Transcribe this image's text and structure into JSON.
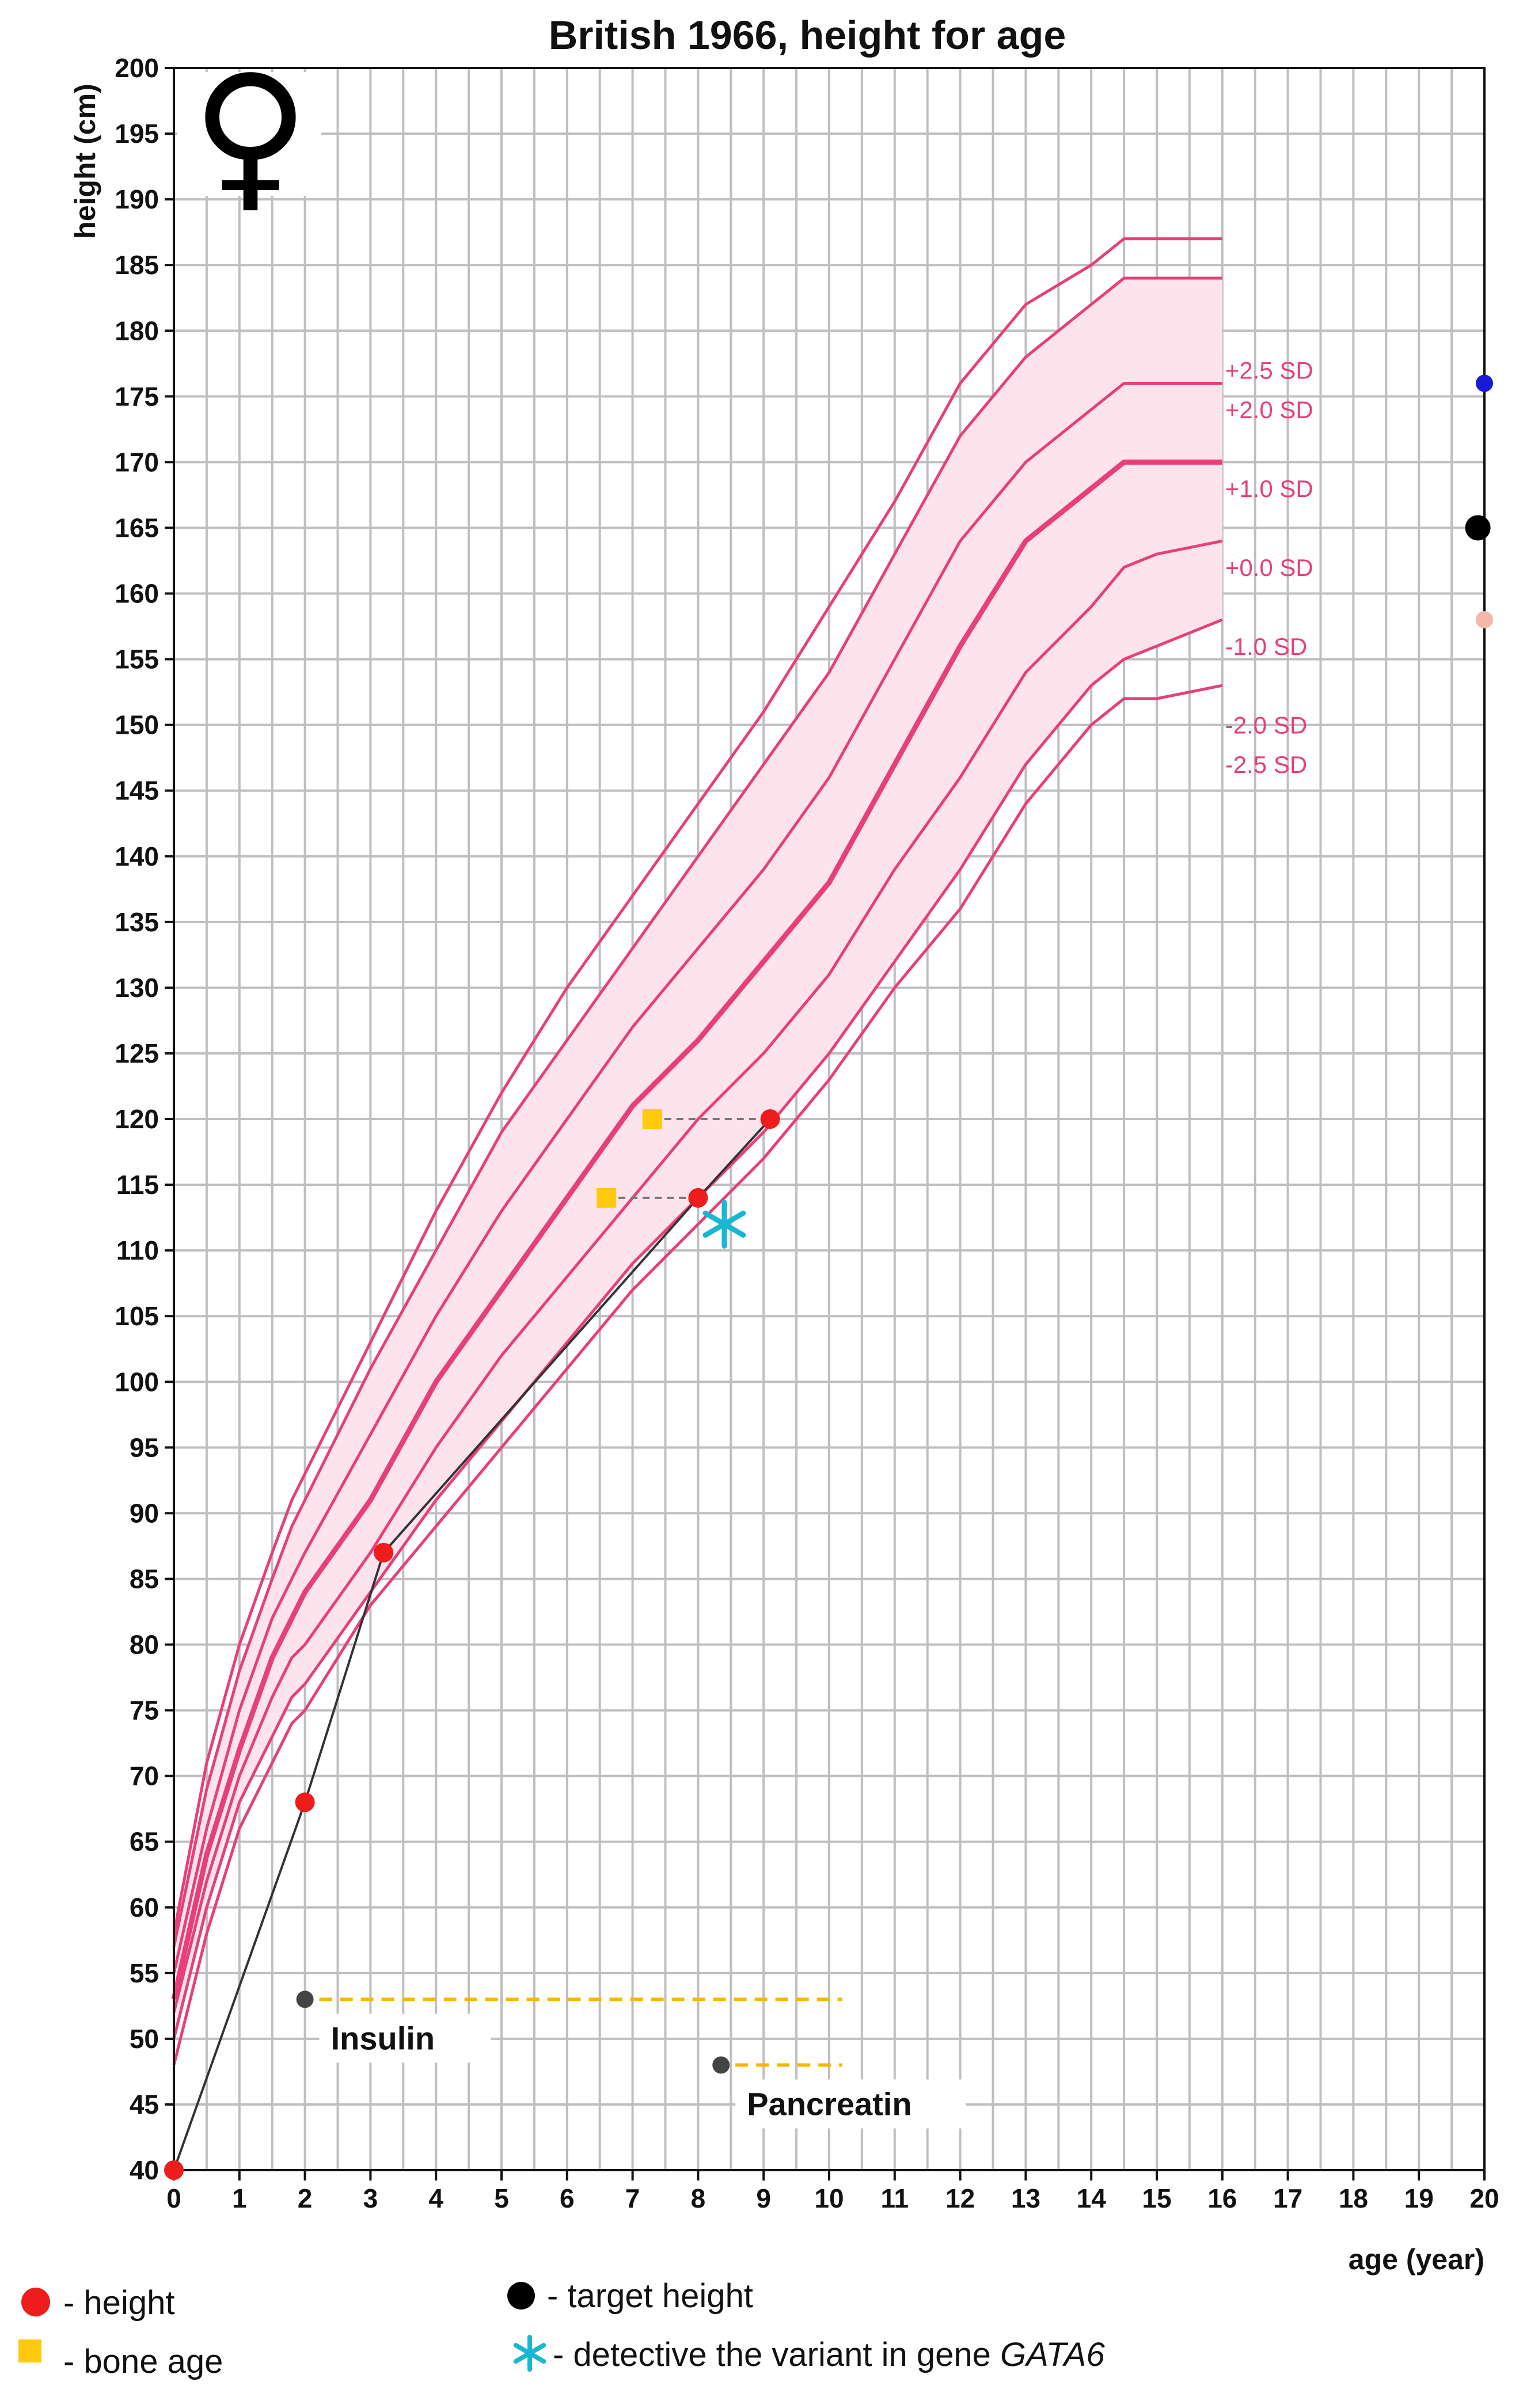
{
  "chart_data": {
    "type": "line",
    "title": "British 1966, height for age",
    "xlabel": "age (year)",
    "ylabel": "height (cm)",
    "xlim": [
      0,
      20
    ],
    "ylim": [
      40,
      200
    ],
    "xticks": [
      "0",
      "1",
      "2",
      "3",
      "4",
      "5",
      "6",
      "7",
      "8",
      "9",
      "10",
      "11",
      "12",
      "13",
      "14",
      "15",
      "16",
      "17",
      "18",
      "19",
      "20"
    ],
    "yticks": [
      "40",
      "45",
      "50",
      "55",
      "60",
      "65",
      "70",
      "75",
      "80",
      "85",
      "90",
      "95",
      "100",
      "105",
      "110",
      "115",
      "120",
      "125",
      "130",
      "135",
      "140",
      "145",
      "150",
      "155",
      "160",
      "165",
      "170",
      "175",
      "180",
      "185",
      "190",
      "195",
      "200"
    ],
    "grid": true,
    "sex_symbol": "♀",
    "reference_curves": [
      {
        "name": "+2.5 SD",
        "x": [
          0,
          0.5,
          1,
          1.5,
          1.8,
          2,
          3,
          4,
          5,
          6,
          7,
          8,
          9,
          10,
          11,
          12,
          13,
          14,
          14.5,
          15,
          16
        ],
        "y": [
          58,
          71,
          80,
          87,
          91,
          93,
          103,
          113,
          122,
          130,
          137,
          144,
          151,
          159,
          167,
          176,
          182,
          185,
          187,
          187,
          187
        ]
      },
      {
        "name": "+2.0 SD",
        "x": [
          0,
          0.5,
          1,
          1.5,
          1.8,
          2,
          3,
          4,
          5,
          6,
          7,
          8,
          9,
          10,
          11,
          12,
          13,
          14,
          14.5,
          15,
          16
        ],
        "y": [
          57,
          69,
          78,
          85,
          89,
          91,
          101,
          110,
          119,
          126,
          133,
          140,
          147,
          154,
          163,
          172,
          178,
          182,
          184,
          184,
          184
        ]
      },
      {
        "name": "+1.0 SD",
        "x": [
          0,
          0.5,
          1,
          1.5,
          1.8,
          2,
          3,
          4,
          5,
          6,
          7,
          8,
          9,
          10,
          11,
          12,
          13,
          14,
          14.5,
          15,
          16
        ],
        "y": [
          55,
          66,
          75,
          82,
          85,
          87,
          96,
          105,
          113,
          120,
          127,
          133,
          139,
          146,
          155,
          164,
          170,
          174,
          176,
          176,
          176
        ]
      },
      {
        "name": "+0.0 SD",
        "x": [
          0,
          0.5,
          1,
          1.5,
          1.8,
          2,
          3,
          4,
          5,
          6,
          7,
          8,
          9,
          10,
          11,
          12,
          13,
          14,
          14.5,
          15,
          16
        ],
        "y": [
          53,
          64,
          72,
          79,
          82,
          84,
          91,
          100,
          107,
          114,
          121,
          126,
          132,
          138,
          147,
          156,
          164,
          168,
          170,
          170,
          170
        ]
      },
      {
        "name": "-1.0 SD",
        "x": [
          0,
          0.5,
          1,
          1.5,
          1.8,
          2,
          3,
          4,
          5,
          6,
          7,
          8,
          9,
          10,
          11,
          12,
          13,
          14,
          14.5,
          15,
          16
        ],
        "y": [
          52,
          62,
          70,
          76,
          79,
          80,
          87,
          95,
          102,
          108,
          114,
          120,
          125,
          131,
          139,
          146,
          154,
          159,
          162,
          163,
          164
        ]
      },
      {
        "name": "-2.0 SD",
        "x": [
          0,
          0.5,
          1,
          1.5,
          1.8,
          2,
          3,
          4,
          5,
          6,
          7,
          8,
          9,
          10,
          11,
          12,
          13,
          14,
          14.5,
          15,
          16
        ],
        "y": [
          50,
          60,
          68,
          73,
          76,
          77,
          84,
          91,
          97,
          103,
          109,
          114,
          119,
          125,
          132,
          139,
          147,
          153,
          155,
          156,
          158
        ]
      },
      {
        "name": "-2.5 SD",
        "x": [
          0,
          0.5,
          1,
          1.5,
          1.8,
          2,
          3,
          4,
          5,
          6,
          7,
          8,
          9,
          10,
          11,
          12,
          13,
          14,
          14.5,
          15,
          16
        ],
        "y": [
          48,
          58,
          66,
          71,
          74,
          75,
          83,
          89,
          95,
          101,
          107,
          112,
          117,
          123,
          130,
          136,
          144,
          150,
          152,
          152,
          153
        ]
      }
    ],
    "sd_labels": [
      "+2.5 SD",
      "+2.0 SD",
      "+1.0 SD",
      "+0.0 SD",
      "-1.0 SD",
      "-2.0 SD",
      "-2.5 SD"
    ],
    "sd_label_y": [
      177,
      174,
      168,
      162,
      156,
      150,
      147
    ],
    "series": [
      {
        "name": "height",
        "x": [
          0,
          2,
          3.2,
          8,
          9.1
        ],
        "y": [
          40,
          68,
          87,
          114,
          120
        ]
      },
      {
        "name": "bone age",
        "x": [
          6.6,
          7.3
        ],
        "y": [
          114,
          120
        ]
      },
      {
        "name": "target height",
        "x": [
          19.9
        ],
        "y": [
          165
        ]
      }
    ],
    "target_range_markers": [
      {
        "x": 20,
        "y": 176,
        "color": "#1a1ad6"
      },
      {
        "x": 20,
        "y": 158,
        "color": "#f2b8aa"
      }
    ],
    "bone_age_links": [
      {
        "from_x": 6.6,
        "to_x": 8,
        "y": 114
      },
      {
        "from_x": 7.3,
        "to_x": 9.1,
        "y": 120
      }
    ],
    "gata6_marker": {
      "x": 8.4,
      "y": 112
    },
    "treatments": [
      {
        "label": "Insulin",
        "start": 2,
        "end": 10.2,
        "y": 53
      },
      {
        "label": "Pancreatin",
        "start": 8.35,
        "end": 10.2,
        "y": 48
      }
    ],
    "legend": [
      {
        "symbol": "red-circle",
        "label": "- height"
      },
      {
        "symbol": "yellow-square",
        "label": "- bone age"
      },
      {
        "symbol": "black-circle",
        "label": "- target height"
      },
      {
        "symbol": "cyan-asterisk",
        "label": "- detective the variant in gene",
        "gene": "GATA6"
      }
    ],
    "colors": {
      "curve": "#e83f79",
      "band": "#fde3ec",
      "grid": "#bfbfbf",
      "height": "#ee1c1c",
      "bone_age": "#ffc90e",
      "target": "#000000",
      "gata6": "#19b7d4",
      "treatment": "#f5b800"
    }
  }
}
